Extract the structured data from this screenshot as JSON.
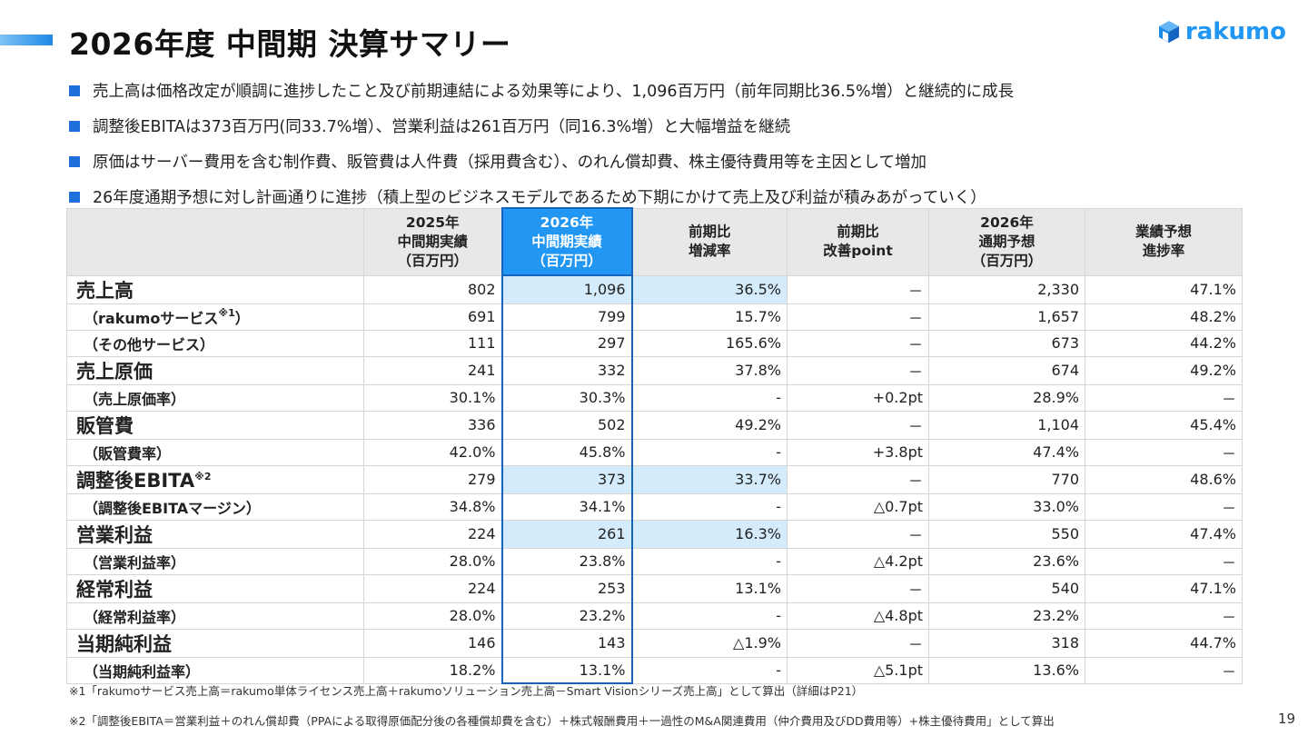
{
  "title": "2026年度 中間期 決算サマリー",
  "logo": {
    "text": "rakumo",
    "color": "#2196f3"
  },
  "accent_color": "#2196f3",
  "highlight_color": "#d4ebfb",
  "bullets": [
    "売上高は価格改定が順調に進捗したこと及び前期連結による効果等により、1,096百万円（前年同期比36.5%増）と継続的に成長",
    "調整後EBITAは373百万円(同33.7%増）、営業利益は261百万円（同16.3%増）と大幅増益を継続",
    "原価はサーバー費用を含む制作費、販管費は人件費（採用費含む）、のれん償却費、株主優待費用等を主因として増加",
    "26年度通期予想に対し計画通りに進捗（積上型のビジネスモデルであるため下期にかけて売上及び利益が積みあがっていく）"
  ],
  "table": {
    "headers": [
      "",
      "2025年\n中間期実績\n（百万円）",
      "2026年\n中間期実績\n（百万円）",
      "前期比\n増減率",
      "前期比\n改善point",
      "2026年\n通期予想\n（百万円）",
      "業績予想\n進捗率"
    ],
    "rows": [
      {
        "label": "売上高",
        "sup": "",
        "type": "main",
        "values": [
          "802",
          "1,096",
          "36.5%",
          "－",
          "2,330",
          "47.1%"
        ],
        "highlight": [
          1,
          2
        ]
      },
      {
        "label": "（rakumoサービス",
        "sup": "※1",
        "suffix": "）",
        "type": "sub",
        "values": [
          "691",
          "799",
          "15.7%",
          "－",
          "1,657",
          "48.2%"
        ],
        "highlight": []
      },
      {
        "label": "（その他サービス）",
        "sup": "",
        "type": "sub",
        "values": [
          "111",
          "297",
          "165.6%",
          "－",
          "673",
          "44.2%"
        ],
        "highlight": []
      },
      {
        "label": "売上原価",
        "sup": "",
        "type": "main",
        "values": [
          "241",
          "332",
          "37.8%",
          "－",
          "674",
          "49.2%"
        ],
        "highlight": []
      },
      {
        "label": "（売上原価率）",
        "sup": "",
        "type": "sub",
        "values": [
          "30.1%",
          "30.3%",
          "-",
          "+0.2pt",
          "28.9%",
          "－"
        ],
        "highlight": []
      },
      {
        "label": "販管費",
        "sup": "",
        "type": "main",
        "values": [
          "336",
          "502",
          "49.2%",
          "－",
          "1,104",
          "45.4%"
        ],
        "highlight": []
      },
      {
        "label": "（販管費率）",
        "sup": "",
        "type": "sub",
        "values": [
          "42.0%",
          "45.8%",
          "-",
          "+3.8pt",
          "47.4%",
          "－"
        ],
        "highlight": []
      },
      {
        "label": "調整後EBITA",
        "sup": "※2",
        "type": "main",
        "values": [
          "279",
          "373",
          "33.7%",
          "－",
          "770",
          "48.6%"
        ],
        "highlight": [
          1,
          2
        ]
      },
      {
        "label": "（調整後EBITAマージン）",
        "sup": "",
        "type": "sub",
        "values": [
          "34.8%",
          "34.1%",
          "-",
          "△0.7pt",
          "33.0%",
          "－"
        ],
        "highlight": []
      },
      {
        "label": "営業利益",
        "sup": "",
        "type": "main",
        "values": [
          "224",
          "261",
          "16.3%",
          "－",
          "550",
          "47.4%"
        ],
        "highlight": [
          1,
          2
        ]
      },
      {
        "label": "（営業利益率）",
        "sup": "",
        "type": "sub",
        "values": [
          "28.0%",
          "23.8%",
          "-",
          "△4.2pt",
          "23.6%",
          "－"
        ],
        "highlight": []
      },
      {
        "label": "経常利益",
        "sup": "",
        "type": "main",
        "values": [
          "224",
          "253",
          "13.1%",
          "－",
          "540",
          "47.1%"
        ],
        "highlight": []
      },
      {
        "label": "（経常利益率）",
        "sup": "",
        "type": "sub",
        "values": [
          "28.0%",
          "23.2%",
          "-",
          "△4.8pt",
          "23.2%",
          "－"
        ],
        "highlight": []
      },
      {
        "label": "当期純利益",
        "sup": "",
        "type": "main",
        "values": [
          "146",
          "143",
          "△1.9%",
          "－",
          "318",
          "44.7%"
        ],
        "highlight": []
      },
      {
        "label": "（当期純利益率）",
        "sup": "",
        "type": "sub",
        "values": [
          "18.2%",
          "13.1%",
          "-",
          "△5.1pt",
          "13.6%",
          "－"
        ],
        "highlight": []
      }
    ]
  },
  "notes": [
    "※1「rakumoサービス売上高＝rakumo単体ライセンス売上高＋rakumoソリューション売上高－Smart Visionシリーズ売上高」として算出（詳細はP21）",
    "※2「調整後EBITA＝営業利益＋のれん償却費（PPAによる取得原価配分後の各種償却費を含む）＋株式報酬費用＋一過性のM&A関連費用（仲介費用及びDD費用等）+株主優待費用」として算出"
  ],
  "page_number": "19"
}
